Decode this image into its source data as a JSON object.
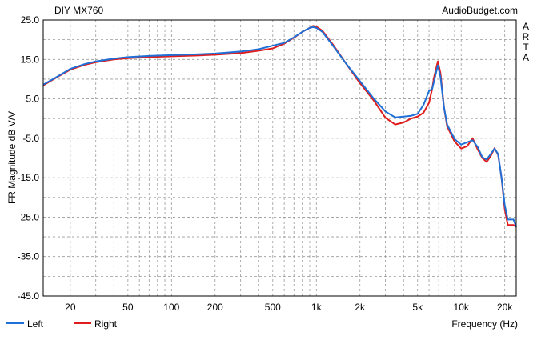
{
  "chart_data": {
    "type": "line",
    "title": "DIY MX760",
    "watermark": "AudioBudget.com",
    "side_label": [
      "A",
      "R",
      "T",
      "A"
    ],
    "xlabel": "Frequency (Hz)",
    "ylabel": "FR Magnitude dB V/V",
    "x_scale": "log",
    "xlim": [
      13,
      24000
    ],
    "ylim": [
      -45,
      25
    ],
    "grid": true,
    "legend_position": "bottom-left",
    "x_ticks": [
      {
        "value": 20,
        "label": "20"
      },
      {
        "value": 50,
        "label": "50"
      },
      {
        "value": 100,
        "label": "100"
      },
      {
        "value": 200,
        "label": "200"
      },
      {
        "value": 500,
        "label": "500"
      },
      {
        "value": 1000,
        "label": "1k"
      },
      {
        "value": 2000,
        "label": "2k"
      },
      {
        "value": 5000,
        "label": "5k"
      },
      {
        "value": 10000,
        "label": "10k"
      },
      {
        "value": 20000,
        "label": "20k"
      }
    ],
    "y_ticks": [
      {
        "value": 25,
        "label": "25.0"
      },
      {
        "value": 15,
        "label": "15.0"
      },
      {
        "value": 5,
        "label": "5.0"
      },
      {
        "value": -5,
        "label": "-5.0"
      },
      {
        "value": -15,
        "label": "-15.0"
      },
      {
        "value": -25,
        "label": "-25.0"
      },
      {
        "value": -35,
        "label": "-35.0"
      },
      {
        "value": -45,
        "label": "-45.0"
      }
    ],
    "series": [
      {
        "name": "Left",
        "color": "#1f6fd6",
        "points": [
          [
            13,
            8.6
          ],
          [
            16,
            10.5
          ],
          [
            20,
            12.6
          ],
          [
            25,
            13.8
          ],
          [
            30,
            14.5
          ],
          [
            40,
            15.2
          ],
          [
            50,
            15.6
          ],
          [
            70,
            15.9
          ],
          [
            100,
            16.1
          ],
          [
            150,
            16.3
          ],
          [
            200,
            16.5
          ],
          [
            300,
            17.0
          ],
          [
            400,
            17.6
          ],
          [
            500,
            18.5
          ],
          [
            600,
            19.2
          ],
          [
            700,
            20.6
          ],
          [
            800,
            22.0
          ],
          [
            900,
            23.0
          ],
          [
            950,
            23.2
          ],
          [
            1000,
            23.0
          ],
          [
            1100,
            22.0
          ],
          [
            1300,
            18.5
          ],
          [
            1600,
            14.0
          ],
          [
            2000,
            9.5
          ],
          [
            2500,
            5.0
          ],
          [
            3000,
            1.8
          ],
          [
            3500,
            0.3
          ],
          [
            4000,
            0.5
          ],
          [
            4500,
            0.7
          ],
          [
            5000,
            1.2
          ],
          [
            5500,
            3.5
          ],
          [
            6000,
            7.0
          ],
          [
            6300,
            7.5
          ],
          [
            6500,
            9.5
          ],
          [
            6900,
            13.5
          ],
          [
            7200,
            10.5
          ],
          [
            7600,
            3.0
          ],
          [
            8000,
            -1.5
          ],
          [
            9000,
            -5.2
          ],
          [
            10000,
            -6.6
          ],
          [
            11000,
            -6.0
          ],
          [
            12000,
            -5.5
          ],
          [
            13000,
            -7.2
          ],
          [
            14000,
            -9.8
          ],
          [
            15000,
            -10.4
          ],
          [
            16000,
            -9.0
          ],
          [
            17000,
            -7.6
          ],
          [
            18000,
            -9.0
          ],
          [
            19000,
            -15.0
          ],
          [
            20000,
            -22.0
          ],
          [
            21000,
            -25.6
          ],
          [
            23000,
            -25.6
          ],
          [
            24000,
            -27.5
          ]
        ]
      },
      {
        "name": "Right",
        "color": "#e11c1c",
        "points": [
          [
            13,
            8.4
          ],
          [
            16,
            10.4
          ],
          [
            20,
            12.4
          ],
          [
            25,
            13.6
          ],
          [
            30,
            14.3
          ],
          [
            40,
            15.0
          ],
          [
            50,
            15.3
          ],
          [
            70,
            15.6
          ],
          [
            100,
            15.8
          ],
          [
            150,
            16.0
          ],
          [
            200,
            16.2
          ],
          [
            300,
            16.6
          ],
          [
            400,
            17.2
          ],
          [
            500,
            17.8
          ],
          [
            600,
            19.0
          ],
          [
            700,
            20.5
          ],
          [
            800,
            22.0
          ],
          [
            900,
            23.0
          ],
          [
            950,
            23.5
          ],
          [
            1000,
            23.3
          ],
          [
            1100,
            22.3
          ],
          [
            1300,
            18.8
          ],
          [
            1600,
            14.0
          ],
          [
            2000,
            9.0
          ],
          [
            2500,
            4.5
          ],
          [
            3000,
            0.2
          ],
          [
            3500,
            -1.5
          ],
          [
            4000,
            -1.0
          ],
          [
            4500,
            0.0
          ],
          [
            5000,
            0.5
          ],
          [
            5500,
            1.5
          ],
          [
            6000,
            4.0
          ],
          [
            6300,
            7.5
          ],
          [
            6500,
            10.5
          ],
          [
            6900,
            14.5
          ],
          [
            7200,
            11.5
          ],
          [
            7600,
            3.0
          ],
          [
            8000,
            -2.0
          ],
          [
            9000,
            -5.8
          ],
          [
            10000,
            -7.6
          ],
          [
            11000,
            -7.0
          ],
          [
            12000,
            -5.0
          ],
          [
            13000,
            -7.8
          ],
          [
            14000,
            -10.0
          ],
          [
            15000,
            -11.0
          ],
          [
            16000,
            -9.5
          ],
          [
            17000,
            -7.5
          ],
          [
            18000,
            -9.2
          ],
          [
            19000,
            -15.0
          ],
          [
            20000,
            -23.0
          ],
          [
            21000,
            -27.0
          ],
          [
            23000,
            -27.0
          ],
          [
            24000,
            -27.5
          ]
        ]
      }
    ]
  }
}
